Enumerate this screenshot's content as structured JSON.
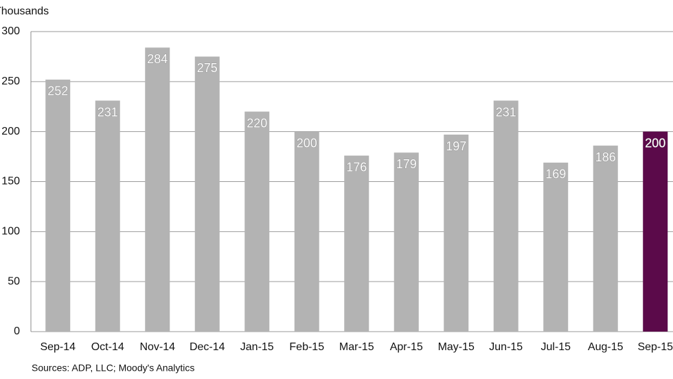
{
  "chart_data": {
    "type": "bar",
    "title": "Thousands",
    "categories": [
      "Sep-14",
      "Oct-14",
      "Nov-14",
      "Dec-14",
      "Jan-15",
      "Feb-15",
      "Mar-15",
      "Apr-15",
      "May-15",
      "Jun-15",
      "Jul-15",
      "Aug-15",
      "Sep-15"
    ],
    "values": [
      252,
      231,
      284,
      275,
      220,
      200,
      176,
      179,
      197,
      231,
      169,
      186,
      200
    ],
    "colors": [
      "#b3b3b3",
      "#b3b3b3",
      "#b3b3b3",
      "#b3b3b3",
      "#b3b3b3",
      "#b3b3b3",
      "#b3b3b3",
      "#b3b3b3",
      "#b3b3b3",
      "#b3b3b3",
      "#b3b3b3",
      "#b3b3b3",
      "#5b0a4a"
    ],
    "ylim": [
      0,
      300
    ],
    "yticks": [
      0,
      50,
      100,
      150,
      200,
      250,
      300
    ],
    "grid": true,
    "source": "Sources: ADP, LLC; Moody's Analytics"
  }
}
